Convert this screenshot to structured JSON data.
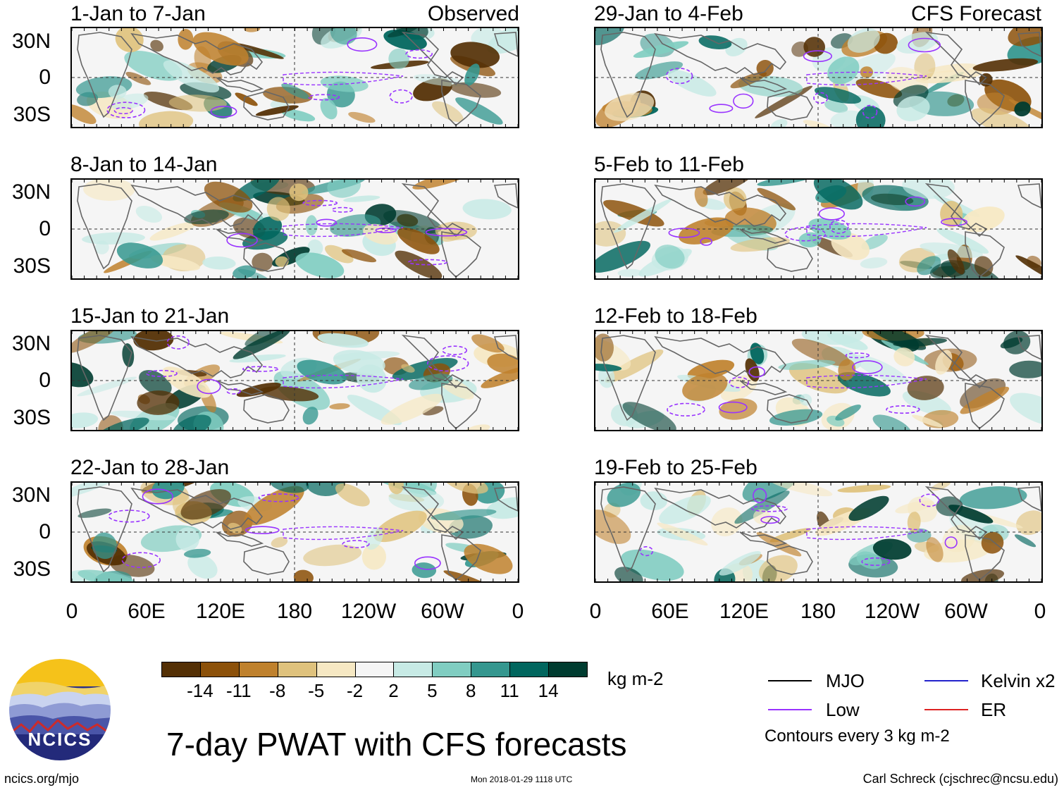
{
  "main_title": "7-day PWAT with CFS forecasts",
  "source_url": "ncics.org/mjo",
  "timestamp": "Mon 2018-01-29 1118 UTC",
  "author": "Carl Schreck (cjschrec@ncsu.edu)",
  "logo_text": "NCICS",
  "units": "kg m-2",
  "observed_label": "Observed",
  "forecast_label": "CFS Forecast",
  "lat_labels": [
    "30N",
    "0",
    "30S"
  ],
  "lon_labels": [
    "0",
    "60E",
    "120E",
    "180",
    "120W",
    "60W",
    "0"
  ],
  "panels_left": [
    {
      "title": "1-Jan to 7-Jan"
    },
    {
      "title": "8-Jan to 14-Jan"
    },
    {
      "title": "15-Jan to 21-Jan"
    },
    {
      "title": "22-Jan to 28-Jan"
    }
  ],
  "panels_right": [
    {
      "title": "29-Jan to 4-Feb"
    },
    {
      "title": "5-Feb to 11-Feb"
    },
    {
      "title": "12-Feb to 18-Feb"
    },
    {
      "title": "19-Feb to 25-Feb"
    }
  ],
  "colorbar": {
    "labels": [
      "-14",
      "-11",
      "-8",
      "-5",
      "-2",
      "2",
      "5",
      "8",
      "11",
      "14"
    ],
    "colors": [
      "#543005",
      "#8c510a",
      "#bf812d",
      "#dfc27d",
      "#f6e8c3",
      "#f5f5f5",
      "#c7eae5",
      "#80cdc1",
      "#35978f",
      "#01665e",
      "#003c30"
    ]
  },
  "legend": {
    "mjo": "MJO",
    "kelvin": "Kelvin x2",
    "low": "Low",
    "er": "ER",
    "note": "Contours every 3 kg m-2",
    "colors": {
      "mjo": "#000000",
      "kelvin": "#2222cc",
      "low": "#9933ff",
      "er": "#dd2222"
    }
  }
}
